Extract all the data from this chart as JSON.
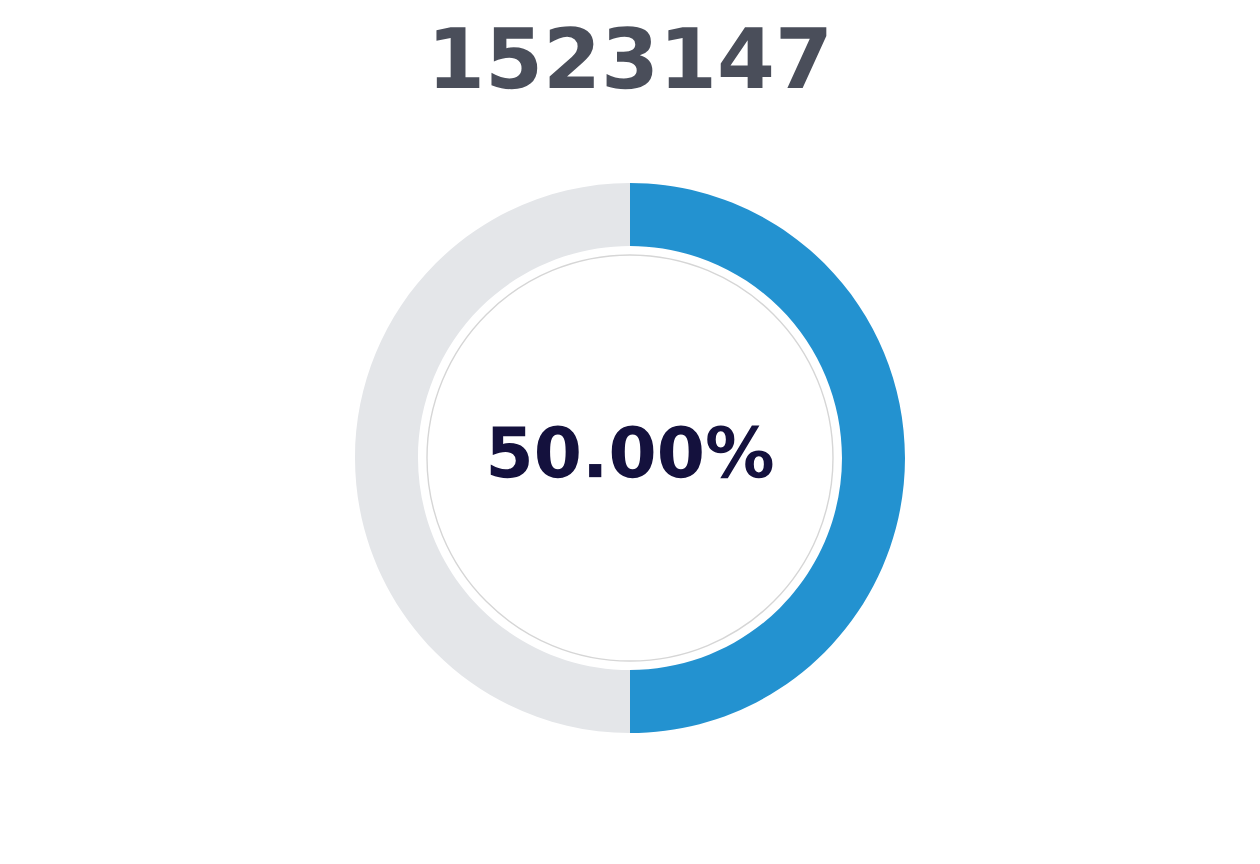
{
  "chart_data": {
    "type": "donut",
    "title": "1523147",
    "categories": [
      null,
      null
    ],
    "values": [
      50,
      50
    ],
    "colors": [
      "#2392d0",
      "#e4e6e9"
    ],
    "annotations": [
      "50.00%"
    ]
  }
}
